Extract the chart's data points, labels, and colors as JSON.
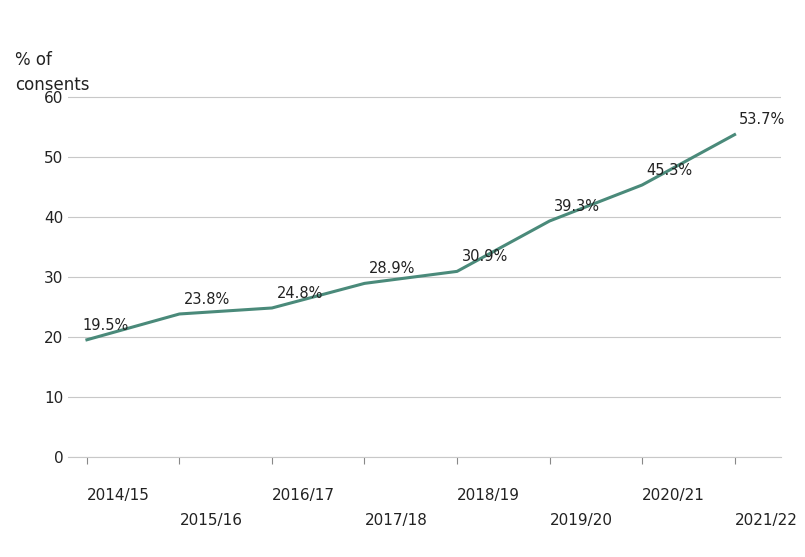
{
  "x_labels_top": [
    "2014/15",
    "",
    "2016/17",
    "",
    "2018/19",
    "",
    "2020/21",
    ""
  ],
  "x_labels_bottom": [
    "",
    "2015/16",
    "",
    "2017/18",
    "",
    "2019/20",
    "",
    "2021/22"
  ],
  "x_values": [
    0,
    1,
    2,
    3,
    4,
    5,
    6,
    7
  ],
  "y_values": [
    19.5,
    23.8,
    24.8,
    28.9,
    30.9,
    39.3,
    45.3,
    53.7
  ],
  "annotations": [
    "19.5%",
    "23.8%",
    "24.8%",
    "28.9%",
    "30.9%",
    "39.3%",
    "45.3%",
    "53.7%"
  ],
  "ann_ha": [
    "left",
    "left",
    "left",
    "left",
    "left",
    "left",
    "left",
    "left"
  ],
  "ann_va": [
    "bottom",
    "bottom",
    "bottom",
    "bottom",
    "bottom",
    "bottom",
    "bottom",
    "bottom"
  ],
  "ann_dx": [
    -0.05,
    0.05,
    0.05,
    0.05,
    0.05,
    0.05,
    0.05,
    0.05
  ],
  "ann_dy": [
    1.2,
    1.2,
    1.2,
    1.2,
    1.2,
    1.2,
    1.2,
    1.2
  ],
  "line_color": "#4a8a7a",
  "line_width": 2.2,
  "ylabel": "% of\nconsents",
  "yticks": [
    0,
    10,
    20,
    30,
    40,
    50,
    60
  ],
  "ylim": [
    0,
    65
  ],
  "xlim": [
    -0.2,
    7.4
  ],
  "background_color": "#ffffff",
  "grid_color": "#c8c8c8",
  "font_color": "#222222",
  "annotation_fontsize": 10.5,
  "tick_fontsize": 11,
  "ylabel_fontsize": 12
}
